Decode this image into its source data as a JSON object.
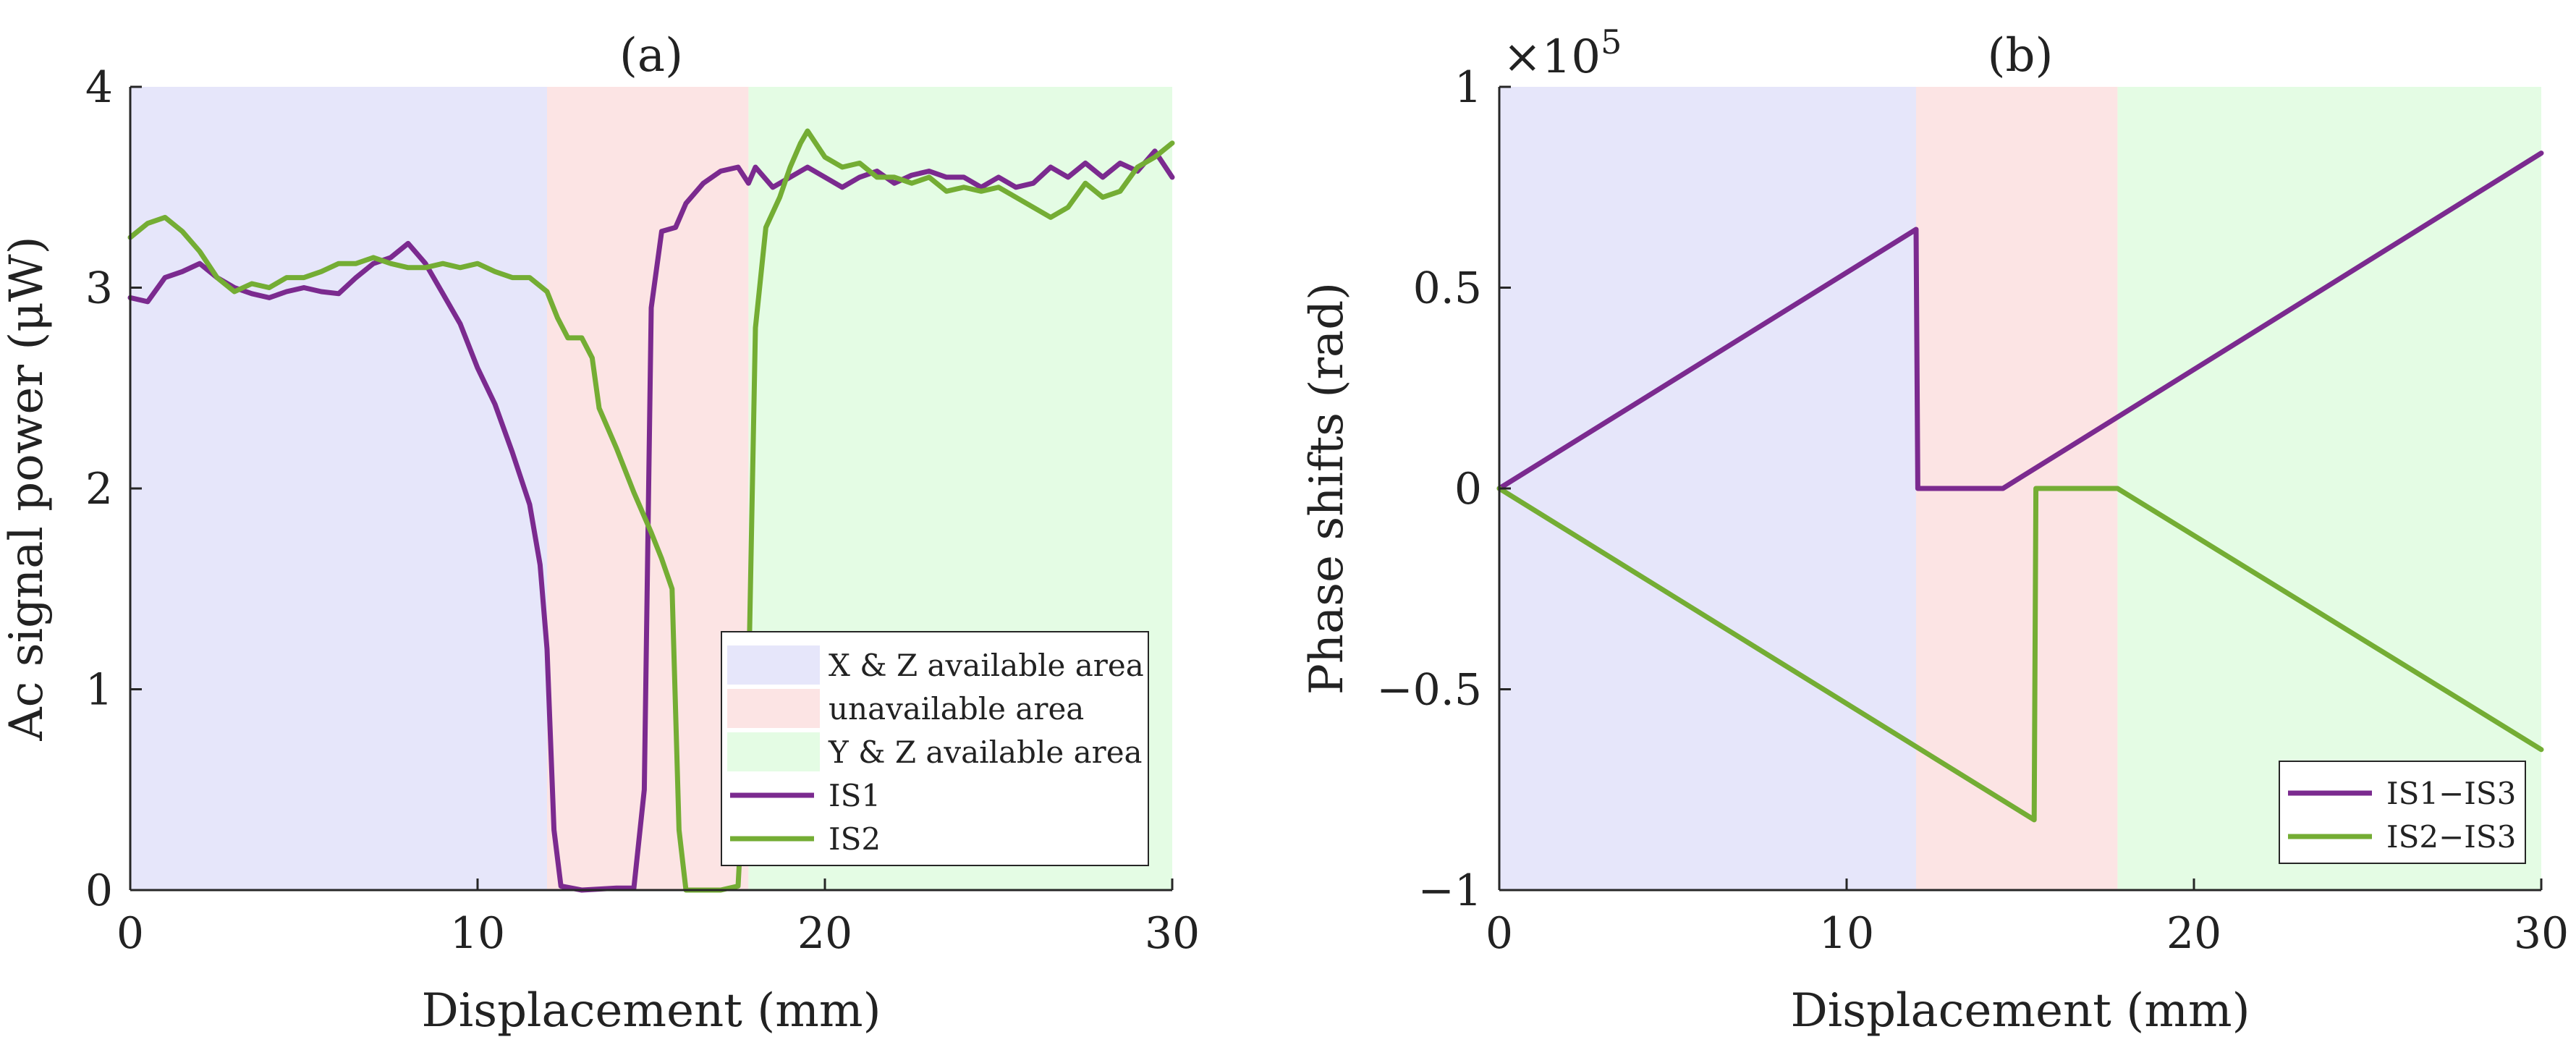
{
  "colors": {
    "xz_region": "#e6e6fa",
    "unavail_region": "#fce4e4",
    "yz_region": "#e4fce4",
    "is1": "#7b2a8f",
    "is2": "#74ad34",
    "axis": "#262626"
  },
  "chart_data": [
    {
      "id": "a",
      "type": "line",
      "title": "(a)",
      "xlabel": "Displacement (mm)",
      "ylabel": "Ac signal power (μW)",
      "xlim": [
        0,
        30
      ],
      "ylim": [
        0,
        4
      ],
      "xticks": [
        0,
        10,
        20,
        30
      ],
      "xtick_labels": [
        "0",
        "10",
        "20",
        "30"
      ],
      "yticks": [
        0,
        1,
        2,
        3,
        4
      ],
      "ytick_labels": [
        "0",
        "1",
        "2",
        "3",
        "4"
      ],
      "regions": [
        {
          "name": "X & Z available area",
          "from": 0,
          "to": 12,
          "color_key": "xz_region"
        },
        {
          "name": "unavailable area",
          "from": 12,
          "to": 17.8,
          "color_key": "unavail_region"
        },
        {
          "name": "Y & Z available area",
          "from": 17.8,
          "to": 30,
          "color_key": "yz_region"
        }
      ],
      "series": [
        {
          "name": "IS1",
          "color_key": "is1",
          "points": [
            [
              0,
              2.95
            ],
            [
              0.5,
              2.93
            ],
            [
              1,
              3.05
            ],
            [
              1.5,
              3.08
            ],
            [
              2,
              3.12
            ],
            [
              2.5,
              3.05
            ],
            [
              3,
              3.0
            ],
            [
              3.5,
              2.97
            ],
            [
              4,
              2.95
            ],
            [
              4.5,
              2.98
            ],
            [
              5,
              3.0
            ],
            [
              5.5,
              2.98
            ],
            [
              6,
              2.97
            ],
            [
              6.5,
              3.05
            ],
            [
              7,
              3.12
            ],
            [
              7.5,
              3.15
            ],
            [
              8,
              3.22
            ],
            [
              8.5,
              3.12
            ],
            [
              9,
              2.97
            ],
            [
              9.5,
              2.82
            ],
            [
              10,
              2.6
            ],
            [
              10.5,
              2.42
            ],
            [
              11,
              2.18
            ],
            [
              11.5,
              1.92
            ],
            [
              11.8,
              1.62
            ],
            [
              12,
              1.2
            ],
            [
              12.2,
              0.3
            ],
            [
              12.4,
              0.02
            ],
            [
              13,
              0.0
            ],
            [
              14,
              0.01
            ],
            [
              14.5,
              0.01
            ],
            [
              14.8,
              0.5
            ],
            [
              15,
              2.9
            ],
            [
              15.3,
              3.28
            ],
            [
              15.7,
              3.3
            ],
            [
              16,
              3.42
            ],
            [
              16.5,
              3.52
            ],
            [
              17,
              3.58
            ],
            [
              17.5,
              3.6
            ],
            [
              17.8,
              3.52
            ],
            [
              18,
              3.6
            ],
            [
              18.5,
              3.5
            ],
            [
              19,
              3.55
            ],
            [
              19.5,
              3.6
            ],
            [
              20,
              3.55
            ],
            [
              20.5,
              3.5
            ],
            [
              21,
              3.55
            ],
            [
              21.5,
              3.58
            ],
            [
              22,
              3.52
            ],
            [
              22.5,
              3.56
            ],
            [
              23,
              3.58
            ],
            [
              23.5,
              3.55
            ],
            [
              24,
              3.55
            ],
            [
              24.5,
              3.5
            ],
            [
              25,
              3.55
            ],
            [
              25.5,
              3.5
            ],
            [
              26,
              3.52
            ],
            [
              26.5,
              3.6
            ],
            [
              27,
              3.55
            ],
            [
              27.5,
              3.62
            ],
            [
              28,
              3.55
            ],
            [
              28.5,
              3.62
            ],
            [
              29,
              3.58
            ],
            [
              29.5,
              3.68
            ],
            [
              30,
              3.55
            ]
          ]
        },
        {
          "name": "IS2",
          "color_key": "is2",
          "points": [
            [
              0,
              3.25
            ],
            [
              0.5,
              3.32
            ],
            [
              1,
              3.35
            ],
            [
              1.5,
              3.28
            ],
            [
              2,
              3.18
            ],
            [
              2.5,
              3.05
            ],
            [
              3,
              2.98
            ],
            [
              3.5,
              3.02
            ],
            [
              4,
              3.0
            ],
            [
              4.5,
              3.05
            ],
            [
              5,
              3.05
            ],
            [
              5.5,
              3.08
            ],
            [
              6,
              3.12
            ],
            [
              6.5,
              3.12
            ],
            [
              7,
              3.15
            ],
            [
              7.5,
              3.12
            ],
            [
              8,
              3.1
            ],
            [
              8.5,
              3.1
            ],
            [
              9,
              3.12
            ],
            [
              9.5,
              3.1
            ],
            [
              10,
              3.12
            ],
            [
              10.5,
              3.08
            ],
            [
              11,
              3.05
            ],
            [
              11.5,
              3.05
            ],
            [
              12,
              2.98
            ],
            [
              12.3,
              2.85
            ],
            [
              12.6,
              2.75
            ],
            [
              13,
              2.75
            ],
            [
              13.3,
              2.65
            ],
            [
              13.5,
              2.4
            ],
            [
              14,
              2.2
            ],
            [
              14.5,
              1.98
            ],
            [
              15,
              1.78
            ],
            [
              15.3,
              1.65
            ],
            [
              15.6,
              1.5
            ],
            [
              15.8,
              0.3
            ],
            [
              16,
              0.0
            ],
            [
              17,
              0.0
            ],
            [
              17.5,
              0.02
            ],
            [
              17.8,
              1.0
            ],
            [
              18,
              2.8
            ],
            [
              18.3,
              3.3
            ],
            [
              18.7,
              3.45
            ],
            [
              19,
              3.6
            ],
            [
              19.3,
              3.72
            ],
            [
              19.5,
              3.78
            ],
            [
              20,
              3.65
            ],
            [
              20.5,
              3.6
            ],
            [
              21,
              3.62
            ],
            [
              21.5,
              3.55
            ],
            [
              22,
              3.55
            ],
            [
              22.5,
              3.52
            ],
            [
              23,
              3.55
            ],
            [
              23.5,
              3.48
            ],
            [
              24,
              3.5
            ],
            [
              24.5,
              3.48
            ],
            [
              25,
              3.5
            ],
            [
              25.5,
              3.45
            ],
            [
              26,
              3.4
            ],
            [
              26.5,
              3.35
            ],
            [
              27,
              3.4
            ],
            [
              27.5,
              3.52
            ],
            [
              28,
              3.45
            ],
            [
              28.5,
              3.48
            ],
            [
              29,
              3.6
            ],
            [
              29.5,
              3.65
            ],
            [
              30,
              3.72
            ]
          ]
        }
      ],
      "legend": {
        "position": "bottom-right",
        "entries": [
          {
            "label": "X & Z available area",
            "kind": "patch",
            "color_key": "xz_region"
          },
          {
            "label": "unavailable area",
            "kind": "patch",
            "color_key": "unavail_region"
          },
          {
            "label": "Y & Z available area",
            "kind": "patch",
            "color_key": "yz_region"
          },
          {
            "label": "IS1",
            "kind": "line",
            "color_key": "is1"
          },
          {
            "label": "IS2",
            "kind": "line",
            "color_key": "is2"
          }
        ]
      }
    },
    {
      "id": "b",
      "type": "line",
      "title": "(b)",
      "xlabel": "Displacement (mm)",
      "ylabel": "Phase shifts (rad)",
      "exponent_label": "×10",
      "exponent_power": "5",
      "xlim": [
        0,
        30
      ],
      "ylim": [
        -1,
        1
      ],
      "xticks": [
        0,
        10,
        20,
        30
      ],
      "xtick_labels": [
        "0",
        "10",
        "20",
        "30"
      ],
      "yticks": [
        -1,
        -0.5,
        0,
        0.5,
        1
      ],
      "ytick_labels": [
        "−1",
        "−0.5",
        "0",
        "0.5",
        "1"
      ],
      "regions": [
        {
          "name": "X & Z available area",
          "from": 0,
          "to": 12,
          "color_key": "xz_region"
        },
        {
          "name": "unavailable area",
          "from": 12,
          "to": 17.8,
          "color_key": "unavail_region"
        },
        {
          "name": "Y & Z available area",
          "from": 17.8,
          "to": 30,
          "color_key": "yz_region"
        }
      ],
      "series": [
        {
          "name": "IS1−IS3",
          "color_key": "is1",
          "points": [
            [
              0,
              0
            ],
            [
              12,
              0.645
            ],
            [
              12.05,
              0.0
            ],
            [
              14.5,
              0.0
            ],
            [
              30,
              0.835
            ]
          ]
        },
        {
          "name": "IS2−IS3",
          "color_key": "is2",
          "points": [
            [
              0,
              0
            ],
            [
              15.4,
              -0.825
            ],
            [
              15.45,
              0.0
            ],
            [
              17.8,
              0.0
            ],
            [
              30,
              -0.65
            ]
          ]
        }
      ],
      "legend": {
        "position": "bottom-right",
        "entries": [
          {
            "label": "IS1−IS3",
            "kind": "line",
            "color_key": "is1"
          },
          {
            "label": "IS2−IS3",
            "kind": "line",
            "color_key": "is2"
          }
        ]
      }
    }
  ]
}
